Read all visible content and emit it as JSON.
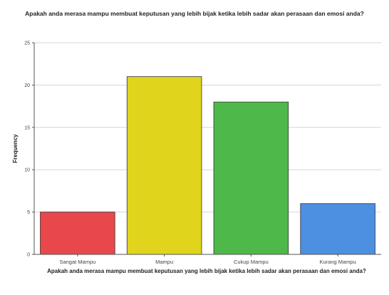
{
  "chart_data": {
    "type": "bar",
    "title": "Apakah anda merasa mampu membuat keputusan yang lebih bijak ketika lebih sadar akan perasaan dan emosi anda?",
    "xlabel": "Apakah anda merasa mampu membuat keputusan yang lebih bijak ketika lebih sadar akan perasaan dan emosi anda?",
    "ylabel": "Frequency",
    "categories": [
      "Sangat Mampu",
      "Mampu",
      "Cukup Mampu",
      "Kurang Mampu"
    ],
    "values": [
      5,
      21,
      18,
      6
    ],
    "colors": [
      "#e8474c",
      "#e0d51c",
      "#4fb84a",
      "#4d8fe0"
    ],
    "ylim": [
      0,
      25
    ],
    "yticks": [
      0,
      5,
      10,
      15,
      20,
      25
    ],
    "grid": true,
    "gridColor": "#d6d6d6",
    "legend": "none"
  }
}
